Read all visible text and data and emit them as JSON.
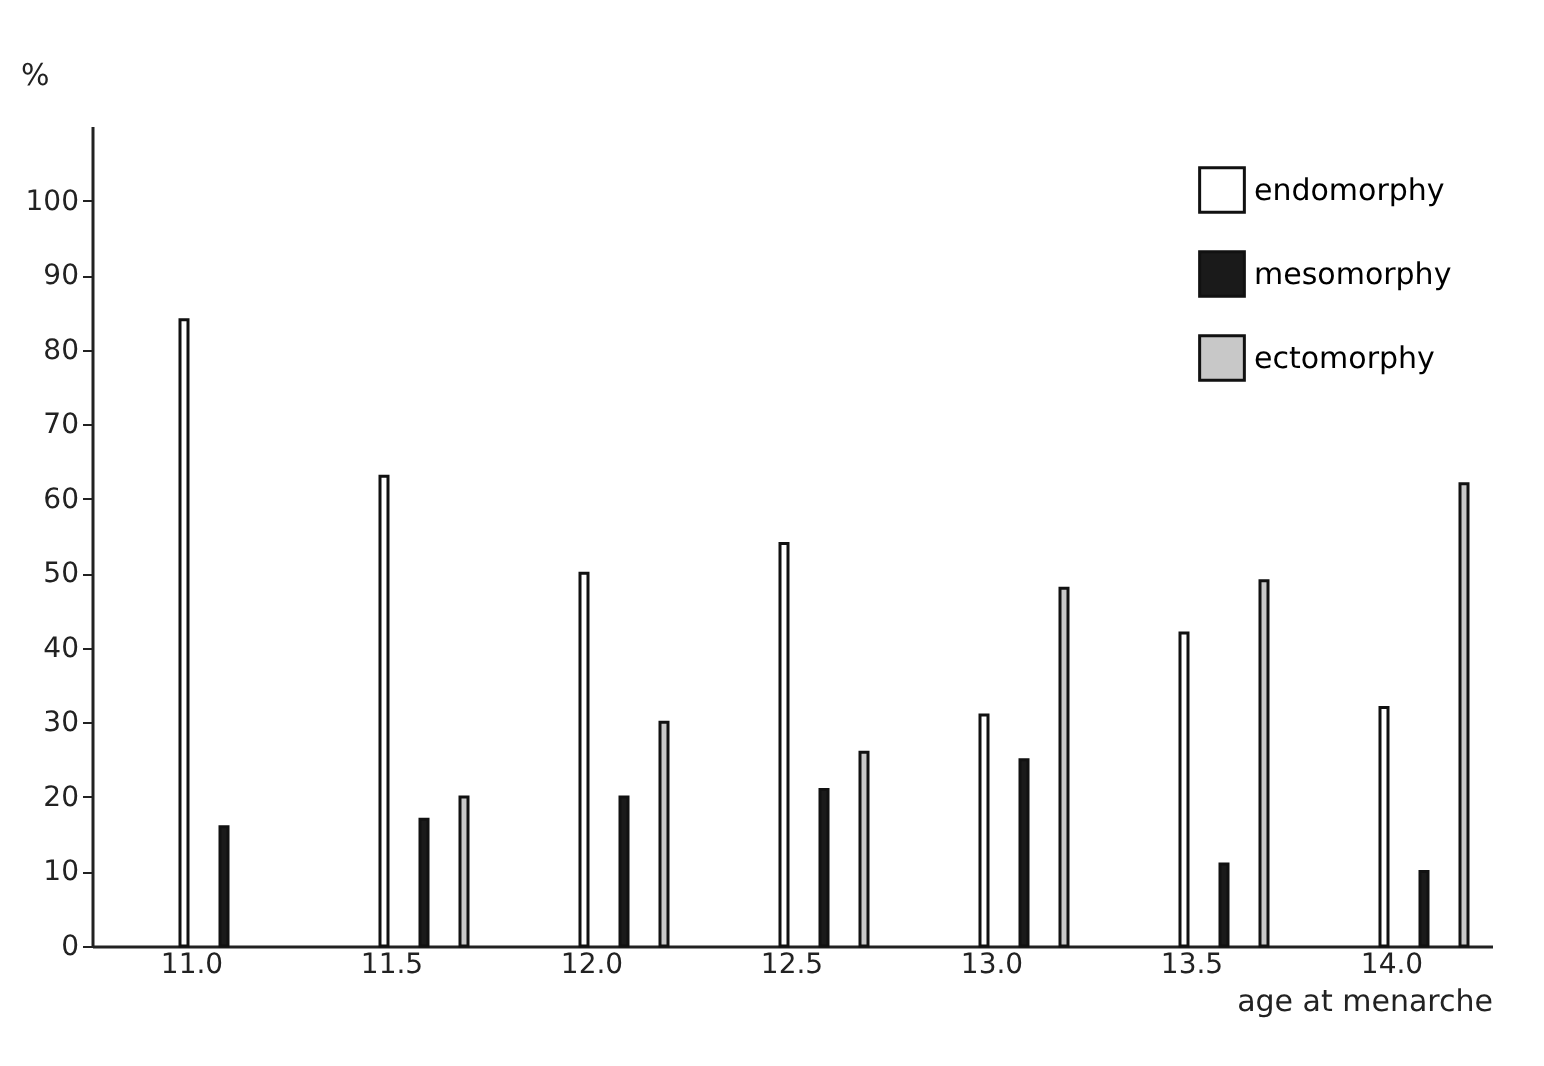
{
  "chart_data": {
    "type": "bar",
    "xlabel": "age at menarche",
    "ylabel": "%",
    "categories": [
      "11.0",
      "11.5",
      "12.0",
      "12.5",
      "13.0",
      "13.5",
      "14.0"
    ],
    "series": [
      {
        "name": "endomorphy",
        "color": "#ffffff",
        "values": [
          84,
          63,
          50,
          54,
          31,
          42,
          32
        ]
      },
      {
        "name": "mesomorphy",
        "color": "#1a1a1a",
        "values": [
          16,
          17,
          20,
          21,
          25,
          11,
          10
        ]
      },
      {
        "name": "ectomorphy",
        "color": "#c8c8c8",
        "values": [
          null,
          20,
          30,
          26,
          48,
          49,
          62
        ]
      }
    ],
    "ylim": [
      0,
      110
    ],
    "yticks": [
      0,
      10,
      20,
      30,
      40,
      50,
      60,
      70,
      80,
      90,
      100
    ],
    "legend": "top right",
    "grid": false
  }
}
